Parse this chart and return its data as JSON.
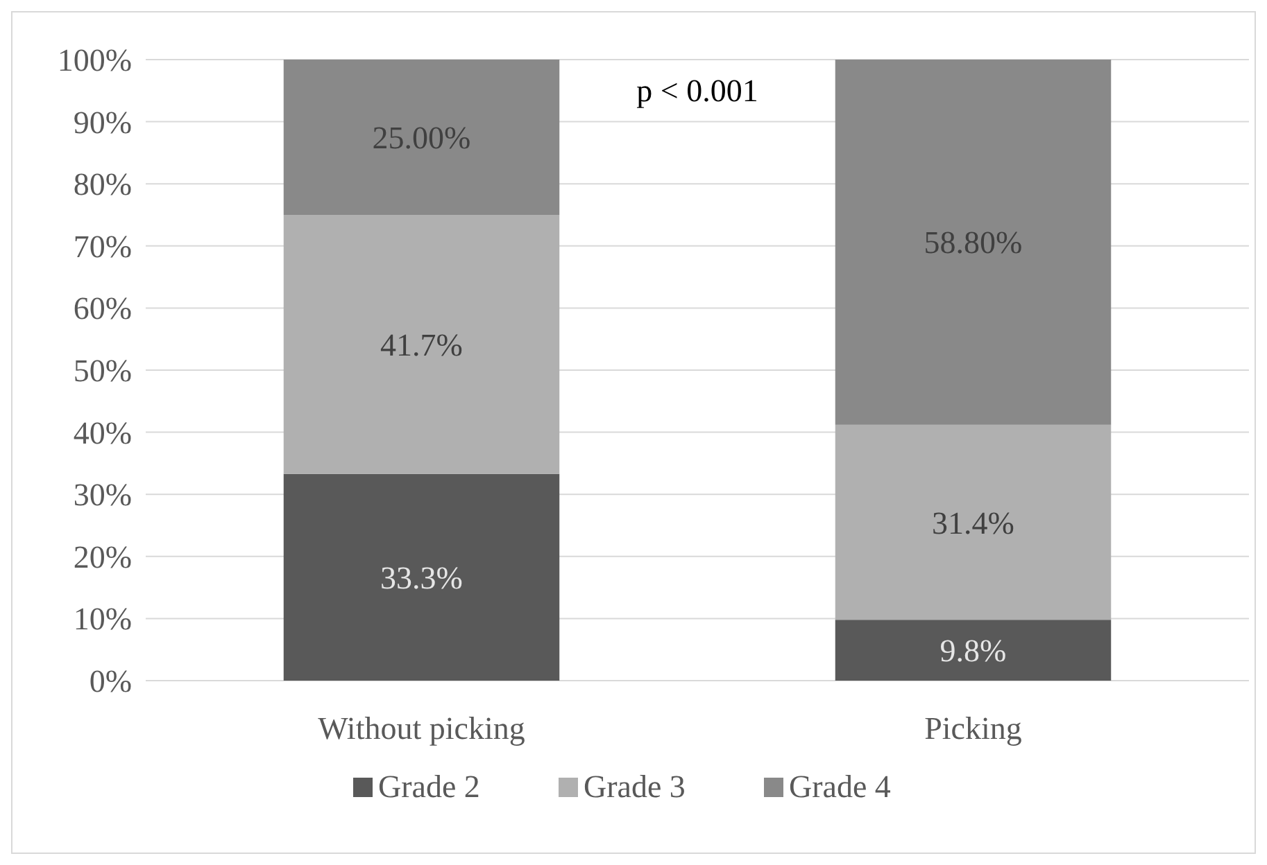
{
  "chart_data": {
    "type": "bar",
    "stacked": true,
    "categories": [
      "Without picking",
      "Picking"
    ],
    "series": [
      {
        "name": "Grade 2",
        "color": "#595959",
        "values": [
          33.3,
          9.8
        ],
        "value_labels": [
          "33.3%",
          "9.8%"
        ]
      },
      {
        "name": "Grade 3",
        "color": "#b0b0b0",
        "values": [
          41.7,
          31.4
        ],
        "value_labels": [
          "41.7%",
          "31.4%"
        ]
      },
      {
        "name": "Grade 4",
        "color": "#898989",
        "values": [
          25.0,
          58.8
        ],
        "value_labels": [
          "25.00%",
          "58.80%"
        ]
      }
    ],
    "ylim": [
      0,
      100
    ],
    "yticks": [
      {
        "value": 0,
        "label": "0%"
      },
      {
        "value": 10,
        "label": "10%"
      },
      {
        "value": 20,
        "label": "20%"
      },
      {
        "value": 30,
        "label": "30%"
      },
      {
        "value": 40,
        "label": "40%"
      },
      {
        "value": 50,
        "label": "50%"
      },
      {
        "value": 60,
        "label": "60%"
      },
      {
        "value": 70,
        "label": "70%"
      },
      {
        "value": 80,
        "label": "80%"
      },
      {
        "value": 90,
        "label": "90%"
      },
      {
        "value": 100,
        "label": "100%"
      }
    ],
    "grid": "y",
    "legend": "bottom",
    "annotations": [
      "p < 0.001"
    ]
  }
}
